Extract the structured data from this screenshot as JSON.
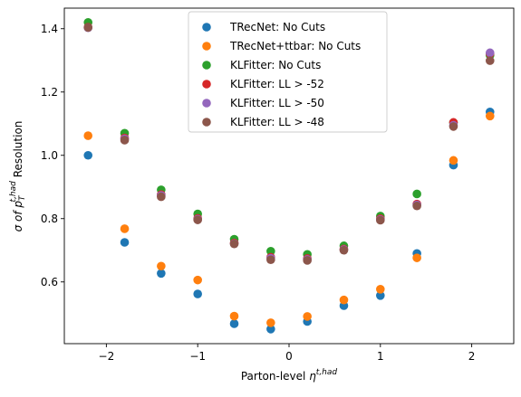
{
  "chart_data": {
    "type": "scatter",
    "xlabel_main": "Parton-level ",
    "xlabel_sym": "η",
    "xlabel_sup": "t,had",
    "ylabel_main": "σ of ",
    "ylabel_sym": "p",
    "ylabel_sub": "T",
    "ylabel_sup": "t,had",
    "ylabel_tail": " Resolution",
    "xlim": [
      -2.46,
      2.46
    ],
    "ylim": [
      0.405,
      1.465
    ],
    "xticks": [
      -2,
      -1,
      0,
      1,
      2
    ],
    "xtick_labels": [
      "−2",
      "−1",
      "0",
      "1",
      "2"
    ],
    "yticks": [
      0.6,
      0.8,
      1.0,
      1.2,
      1.4
    ],
    "ytick_labels": [
      "0.6",
      "0.8",
      "1.0",
      "1.2",
      "1.4"
    ],
    "legend_position": "upper-center",
    "x": [
      -2.2,
      -1.8,
      -1.4,
      -1.0,
      -0.6,
      -0.2,
      0.2,
      0.6,
      1.0,
      1.4,
      1.8,
      2.2
    ],
    "series": [
      {
        "name": "TRecNet: No Cuts",
        "color": "#1f77b4",
        "values": [
          1.0,
          0.725,
          0.627,
          0.562,
          0.468,
          0.451,
          0.475,
          0.525,
          0.557,
          0.69,
          0.969,
          1.137
        ]
      },
      {
        "name": "TRecNet+ttbar: No Cuts",
        "color": "#ff7f0e",
        "values": [
          1.062,
          0.768,
          0.65,
          0.606,
          0.492,
          0.471,
          0.491,
          0.543,
          0.577,
          0.676,
          0.984,
          1.124
        ]
      },
      {
        "name": "KLFitter: No Cuts",
        "color": "#2ca02c",
        "values": [
          1.42,
          1.07,
          0.891,
          0.815,
          0.735,
          0.697,
          0.687,
          0.714,
          0.808,
          0.878,
          1.103,
          1.316
        ]
      },
      {
        "name": "KLFitter: LL > -52",
        "color": "#d62728",
        "values": [
          1.405,
          1.055,
          0.876,
          0.801,
          0.723,
          0.678,
          0.674,
          0.704,
          0.8,
          0.846,
          1.104,
          1.321
        ]
      },
      {
        "name": "KLFitter: LL > -50",
        "color": "#9467bd",
        "values": [
          1.403,
          1.052,
          0.873,
          0.798,
          0.721,
          0.675,
          0.671,
          0.702,
          0.797,
          0.843,
          1.095,
          1.324
        ]
      },
      {
        "name": "KLFitter: LL > -48",
        "color": "#8c564b",
        "values": [
          1.404,
          1.048,
          0.869,
          0.796,
          0.72,
          0.67,
          0.668,
          0.7,
          0.795,
          0.84,
          1.091,
          1.299
        ]
      }
    ]
  }
}
